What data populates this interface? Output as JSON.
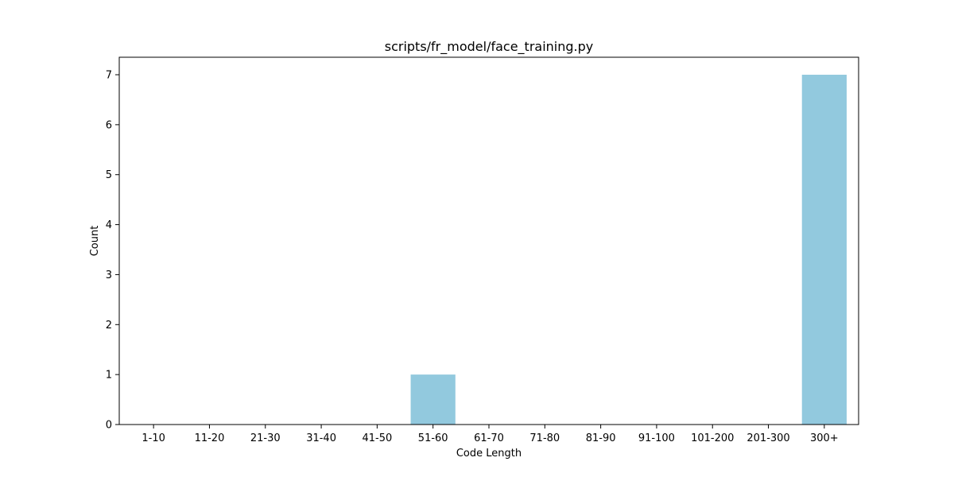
{
  "chart_data": {
    "type": "bar",
    "title": "scripts/fr_model/face_training.py",
    "xlabel": "Code Length",
    "ylabel": "Count",
    "categories": [
      "1-10",
      "11-20",
      "21-30",
      "31-40",
      "41-50",
      "51-60",
      "61-70",
      "71-80",
      "81-90",
      "91-100",
      "101-200",
      "201-300",
      "300+"
    ],
    "values": [
      0,
      0,
      0,
      0,
      0,
      1,
      0,
      0,
      0,
      0,
      0,
      0,
      7
    ],
    "ylim": [
      0,
      7.35
    ],
    "yticks": [
      0,
      1,
      2,
      3,
      4,
      5,
      6,
      7
    ],
    "grid": false,
    "legend": "none",
    "bar_color": "#92c9de"
  }
}
